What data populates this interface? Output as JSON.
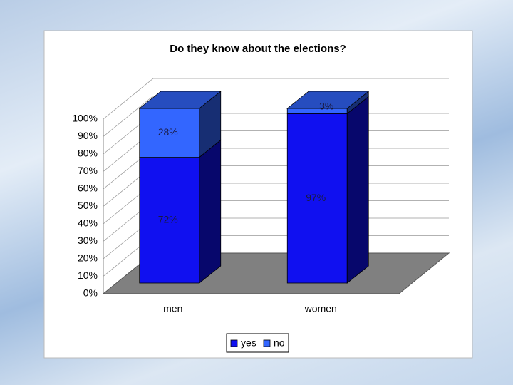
{
  "chart_data": {
    "type": "bar",
    "stacked": true,
    "title": "Do they know about the elections?",
    "categories": [
      "men",
      "women"
    ],
    "series": [
      {
        "name": "yes",
        "color": "#1010f0",
        "values": [
          72,
          97
        ],
        "value_labels": [
          "72%",
          "97%"
        ]
      },
      {
        "name": "no",
        "color": "#3366ff",
        "values": [
          28,
          3
        ],
        "value_labels": [
          "28%",
          "3%"
        ]
      }
    ],
    "ylim": [
      0,
      100
    ],
    "yticks": [
      {
        "value": 0,
        "label": "0%"
      },
      {
        "value": 10,
        "label": "10%"
      },
      {
        "value": 20,
        "label": "20%"
      },
      {
        "value": 30,
        "label": "30%"
      },
      {
        "value": 40,
        "label": "40%"
      },
      {
        "value": 50,
        "label": "50%"
      },
      {
        "value": 60,
        "label": "60%"
      },
      {
        "value": 70,
        "label": "70%"
      },
      {
        "value": 80,
        "label": "80%"
      },
      {
        "value": 90,
        "label": "90%"
      },
      {
        "value": 100,
        "label": "100%"
      }
    ],
    "grid": true,
    "legend": "bottom"
  }
}
